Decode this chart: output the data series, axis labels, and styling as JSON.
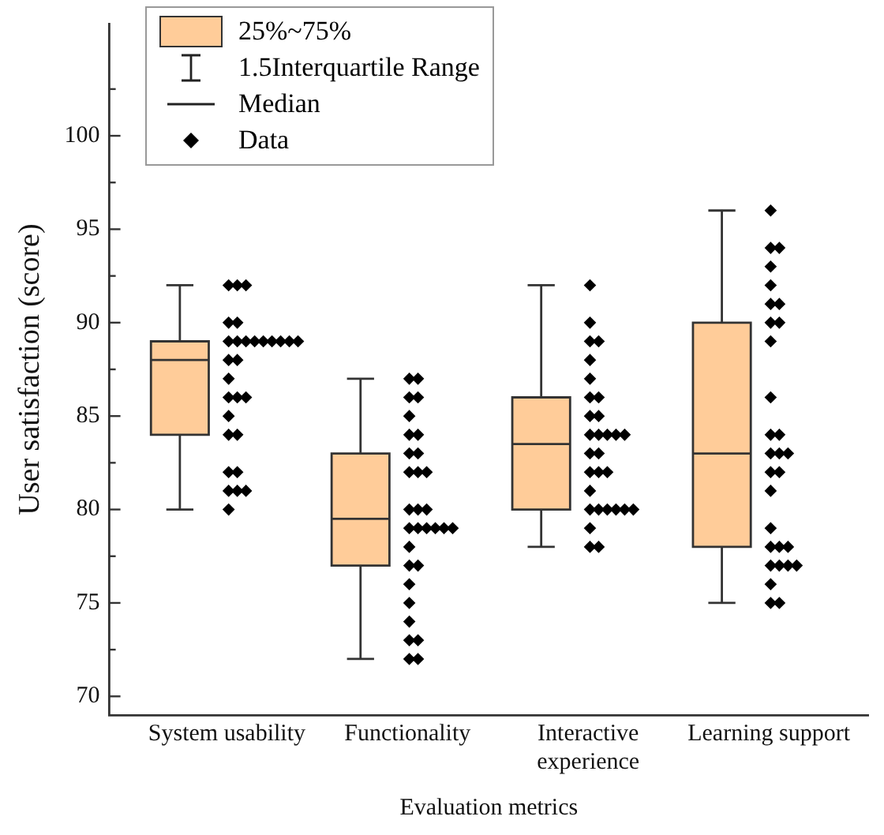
{
  "chart_data": {
    "type": "box",
    "xlabel": "Evaluation metrics",
    "ylabel": "User satisfaction (score)",
    "categories": [
      "System usability",
      "Functionality",
      "Interactive experience",
      "Learning support"
    ],
    "series": [
      {
        "name": "25%~75%",
        "type": "box",
        "color": "#ffcc99",
        "boxes": [
          {
            "low": 80,
            "q1": 84,
            "median": 88,
            "q3": 89,
            "high": 92
          },
          {
            "low": 72,
            "q1": 77,
            "median": 79.5,
            "q3": 83,
            "high": 87
          },
          {
            "low": 78,
            "q1": 80,
            "median": 83.5,
            "q3": 86,
            "high": 92
          },
          {
            "low": 75,
            "q1": 78,
            "median": 83,
            "q3": 90,
            "high": 96
          }
        ]
      },
      {
        "name": "Data",
        "type": "scatter",
        "color": "#000000",
        "x": [
          "System usability",
          "System usability",
          "System usability",
          "System usability",
          "System usability",
          "System usability",
          "System usability",
          "System usability",
          "System usability",
          "System usability",
          "System usability",
          "System usability",
          "System usability",
          "System usability",
          "System usability",
          "System usability",
          "System usability",
          "System usability",
          "System usability",
          "System usability",
          "System usability",
          "System usability",
          "System usability",
          "System usability",
          "System usability",
          "System usability",
          "System usability",
          "System usability",
          "System usability",
          "Functionality",
          "Functionality",
          "Functionality",
          "Functionality",
          "Functionality",
          "Functionality",
          "Functionality",
          "Functionality",
          "Functionality",
          "Functionality",
          "Functionality",
          "Functionality",
          "Functionality",
          "Functionality",
          "Functionality",
          "Functionality",
          "Functionality",
          "Functionality",
          "Functionality",
          "Functionality",
          "Functionality",
          "Functionality",
          "Functionality",
          "Functionality",
          "Functionality",
          "Functionality",
          "Functionality",
          "Functionality",
          "Functionality",
          "Functionality",
          "Functionality",
          "Interactive experience",
          "Interactive experience",
          "Interactive experience",
          "Interactive experience",
          "Interactive experience",
          "Interactive experience",
          "Interactive experience",
          "Interactive experience",
          "Interactive experience",
          "Interactive experience",
          "Interactive experience",
          "Interactive experience",
          "Interactive experience",
          "Interactive experience",
          "Interactive experience",
          "Interactive experience",
          "Interactive experience",
          "Interactive experience",
          "Interactive experience",
          "Interactive experience",
          "Interactive experience",
          "Interactive experience",
          "Interactive experience",
          "Interactive experience",
          "Interactive experience",
          "Interactive experience",
          "Interactive experience",
          "Interactive experience",
          "Interactive experience",
          "Interactive experience",
          "Learning support",
          "Learning support",
          "Learning support",
          "Learning support",
          "Learning support",
          "Learning support",
          "Learning support",
          "Learning support",
          "Learning support",
          "Learning support",
          "Learning support",
          "Learning support",
          "Learning support",
          "Learning support",
          "Learning support",
          "Learning support",
          "Learning support",
          "Learning support",
          "Learning support",
          "Learning support",
          "Learning support",
          "Learning support",
          "Learning support",
          "Learning support",
          "Learning support",
          "Learning support",
          "Learning support",
          "Learning support",
          "Learning support",
          "Learning support"
        ],
        "values": [
          92,
          92,
          92,
          90,
          90,
          89,
          89,
          89,
          89,
          89,
          89,
          89,
          89,
          89,
          88,
          88,
          87,
          86,
          86,
          86,
          85,
          84,
          84,
          82,
          82,
          81,
          81,
          81,
          80,
          87,
          87,
          86,
          86,
          85,
          84,
          84,
          83,
          83,
          82,
          82,
          82,
          80,
          80,
          80,
          79,
          79,
          79,
          79,
          79,
          79,
          78,
          77,
          77,
          76,
          75,
          74,
          73,
          73,
          72,
          72,
          92,
          90,
          89,
          89,
          88,
          87,
          86,
          86,
          85,
          85,
          84,
          84,
          84,
          84,
          84,
          83,
          83,
          82,
          82,
          82,
          81,
          80,
          80,
          80,
          80,
          80,
          80,
          79,
          78,
          78,
          96,
          94,
          94,
          93,
          92,
          91,
          91,
          90,
          90,
          89,
          86,
          84,
          84,
          83,
          83,
          83,
          82,
          82,
          81,
          79,
          78,
          78,
          78,
          77,
          77,
          77,
          77,
          76,
          75,
          75
        ]
      }
    ],
    "annotations": [
      "1.5Interquartile Range",
      "Median"
    ],
    "ylim": [
      69,
      106
    ],
    "yticks": [
      70,
      {
        "value": 72.5,
        "label": null
      },
      75,
      {
        "value": 77.5,
        "label": null
      },
      80,
      {
        "value": 82.5,
        "label": null
      },
      85,
      {
        "value": 87.5,
        "label": null
      },
      90,
      {
        "value": 92.5,
        "label": null
      },
      95,
      {
        "value": 97.5,
        "label": null
      },
      100,
      {
        "value": 102.5,
        "label": null
      }
    ],
    "legend": "top left",
    "marker": "diamond",
    "grid": false
  }
}
